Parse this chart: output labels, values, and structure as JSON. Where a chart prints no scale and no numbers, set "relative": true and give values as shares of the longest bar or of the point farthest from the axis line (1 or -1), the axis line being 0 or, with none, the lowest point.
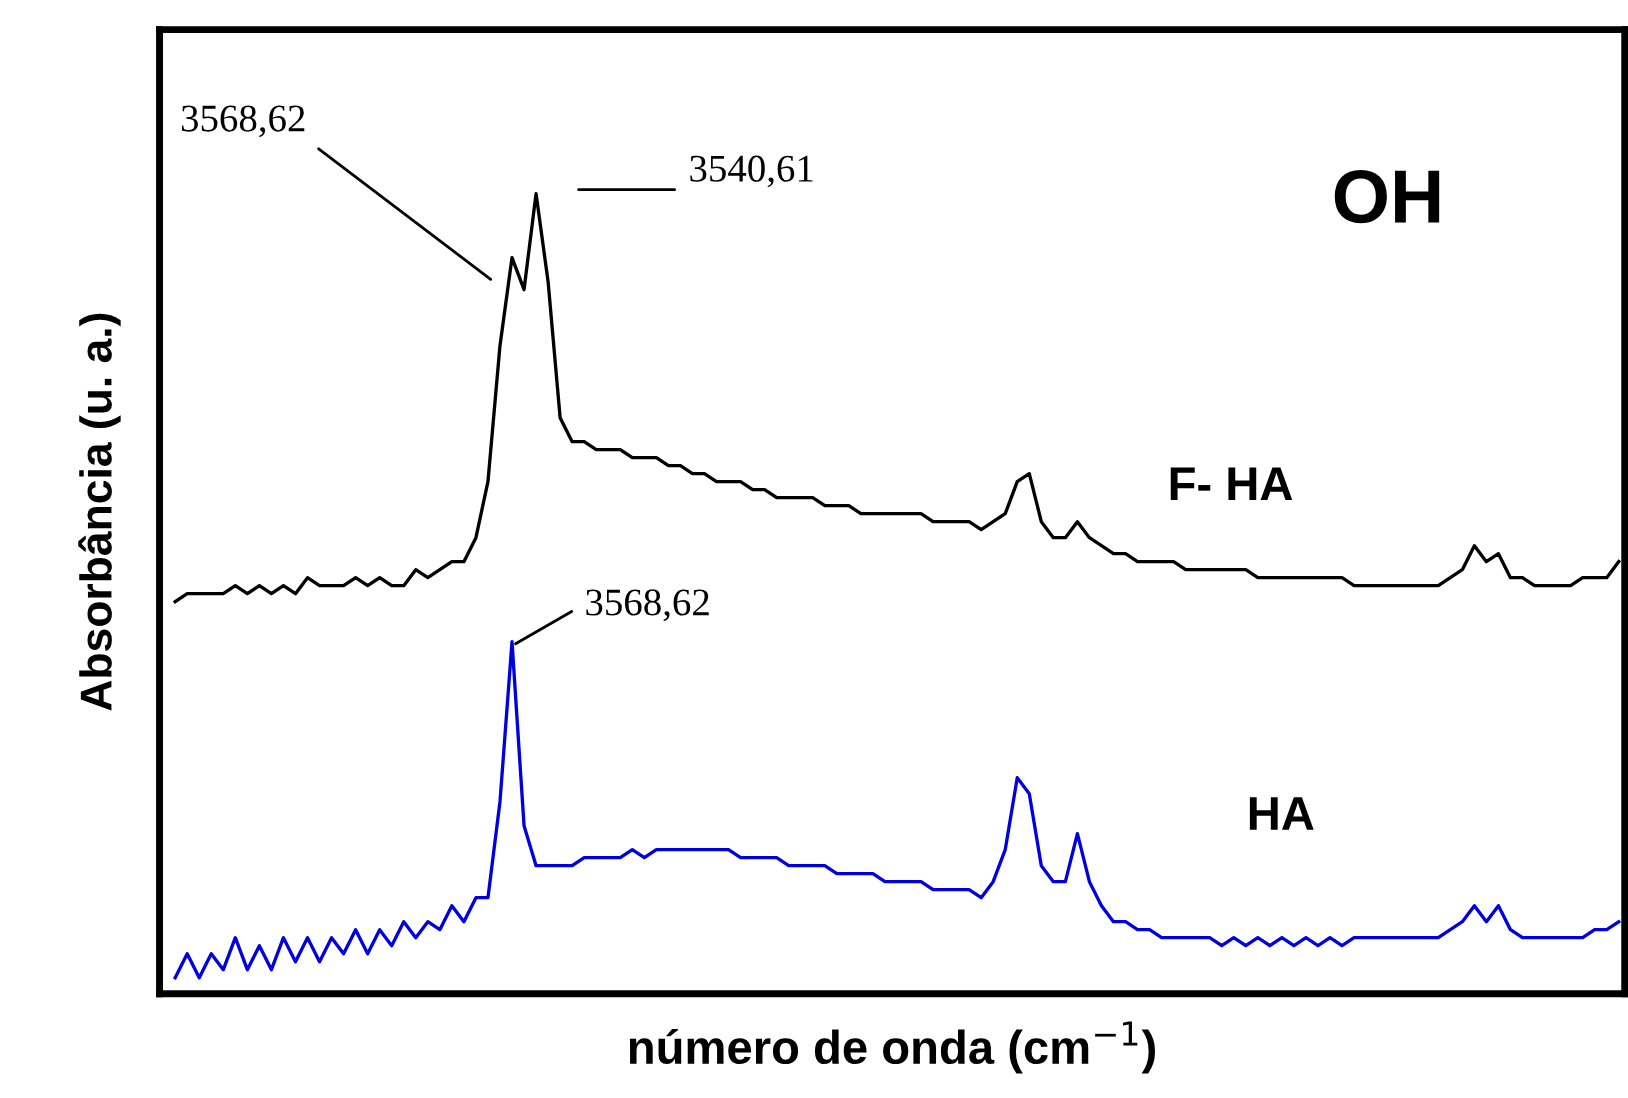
{
  "chart_data": {
    "type": "line",
    "relative": true,
    "legend": false,
    "xlabel": "número de onda (cm$^{−1}$)",
    "ylabel": "Absorbância (u. a.)",
    "annotations": [
      "3568,62",
      "3540,61",
      "3568,62",
      "OH"
    ],
    "categories": [
      null,
      null,
      null,
      null,
      null,
      null,
      null,
      null,
      null,
      null,
      null,
      null,
      null,
      null,
      null,
      null,
      null,
      null,
      null,
      null,
      null,
      null,
      null,
      null,
      null,
      null,
      null,
      null,
      null,
      null,
      null,
      null,
      null,
      null,
      null,
      null,
      null,
      null,
      null,
      null,
      null,
      null,
      null,
      null,
      null,
      null,
      null,
      null,
      null,
      null,
      null,
      null,
      null,
      null,
      null,
      null,
      null,
      null,
      null,
      null,
      null,
      null,
      null,
      null,
      null,
      null,
      null,
      null,
      null,
      null,
      null,
      null,
      null,
      null,
      null,
      null,
      null,
      null,
      null,
      null,
      null,
      null,
      null,
      null,
      null,
      null,
      null,
      null,
      null,
      null,
      null,
      null,
      null,
      null,
      null,
      null,
      null,
      null,
      null,
      null,
      null,
      null,
      null,
      null,
      null,
      null,
      null,
      null,
      null,
      null,
      null,
      null,
      null,
      null,
      null,
      null,
      null,
      null,
      null,
      null,
      null
    ],
    "series": [
      {
        "name": "F- HA",
        "color": "#000000",
        "values": [
          0.49,
          0.5,
          0.5,
          0.5,
          0.5,
          0.51,
          0.5,
          0.51,
          0.5,
          0.51,
          0.5,
          0.52,
          0.51,
          0.51,
          0.51,
          0.52,
          0.51,
          0.52,
          0.51,
          0.51,
          0.53,
          0.52,
          0.53,
          0.54,
          0.54,
          0.57,
          0.64,
          0.81,
          0.92,
          0.88,
          1.0,
          0.89,
          0.72,
          0.69,
          0.69,
          0.68,
          0.68,
          0.68,
          0.67,
          0.67,
          0.67,
          0.66,
          0.66,
          0.65,
          0.65,
          0.64,
          0.64,
          0.64,
          0.63,
          0.63,
          0.62,
          0.62,
          0.62,
          0.62,
          0.61,
          0.61,
          0.61,
          0.6,
          0.6,
          0.6,
          0.6,
          0.6,
          0.6,
          0.59,
          0.59,
          0.59,
          0.59,
          0.58,
          0.59,
          0.6,
          0.64,
          0.65,
          0.59,
          0.57,
          0.57,
          0.59,
          0.57,
          0.56,
          0.55,
          0.55,
          0.54,
          0.54,
          0.54,
          0.54,
          0.53,
          0.53,
          0.53,
          0.53,
          0.53,
          0.53,
          0.52,
          0.52,
          0.52,
          0.52,
          0.52,
          0.52,
          0.52,
          0.52,
          0.51,
          0.51,
          0.51,
          0.51,
          0.51,
          0.51,
          0.51,
          0.51,
          0.52,
          0.53,
          0.56,
          0.54,
          0.55,
          0.52,
          0.52,
          0.51,
          0.51,
          0.51,
          0.51,
          0.52,
          0.52,
          0.52,
          0.54
        ]
      },
      {
        "name": "HA",
        "color": "#0000e0",
        "values": [
          0.02,
          0.05,
          0.02,
          0.05,
          0.03,
          0.07,
          0.03,
          0.06,
          0.03,
          0.07,
          0.04,
          0.07,
          0.04,
          0.07,
          0.05,
          0.08,
          0.05,
          0.08,
          0.06,
          0.09,
          0.07,
          0.09,
          0.08,
          0.11,
          0.09,
          0.12,
          0.12,
          0.24,
          0.44,
          0.21,
          0.16,
          0.16,
          0.16,
          0.16,
          0.17,
          0.17,
          0.17,
          0.17,
          0.18,
          0.17,
          0.18,
          0.18,
          0.18,
          0.18,
          0.18,
          0.18,
          0.18,
          0.17,
          0.17,
          0.17,
          0.17,
          0.16,
          0.16,
          0.16,
          0.16,
          0.15,
          0.15,
          0.15,
          0.15,
          0.14,
          0.14,
          0.14,
          0.14,
          0.13,
          0.13,
          0.13,
          0.13,
          0.12,
          0.14,
          0.18,
          0.27,
          0.25,
          0.16,
          0.14,
          0.14,
          0.2,
          0.14,
          0.11,
          0.09,
          0.09,
          0.08,
          0.08,
          0.07,
          0.07,
          0.07,
          0.07,
          0.07,
          0.06,
          0.07,
          0.06,
          0.07,
          0.06,
          0.07,
          0.06,
          0.07,
          0.06,
          0.07,
          0.06,
          0.07,
          0.07,
          0.07,
          0.07,
          0.07,
          0.07,
          0.07,
          0.07,
          0.08,
          0.09,
          0.11,
          0.09,
          0.11,
          0.08,
          0.07,
          0.07,
          0.07,
          0.07,
          0.07,
          0.07,
          0.08,
          0.08,
          0.09
        ]
      }
    ]
  }
}
